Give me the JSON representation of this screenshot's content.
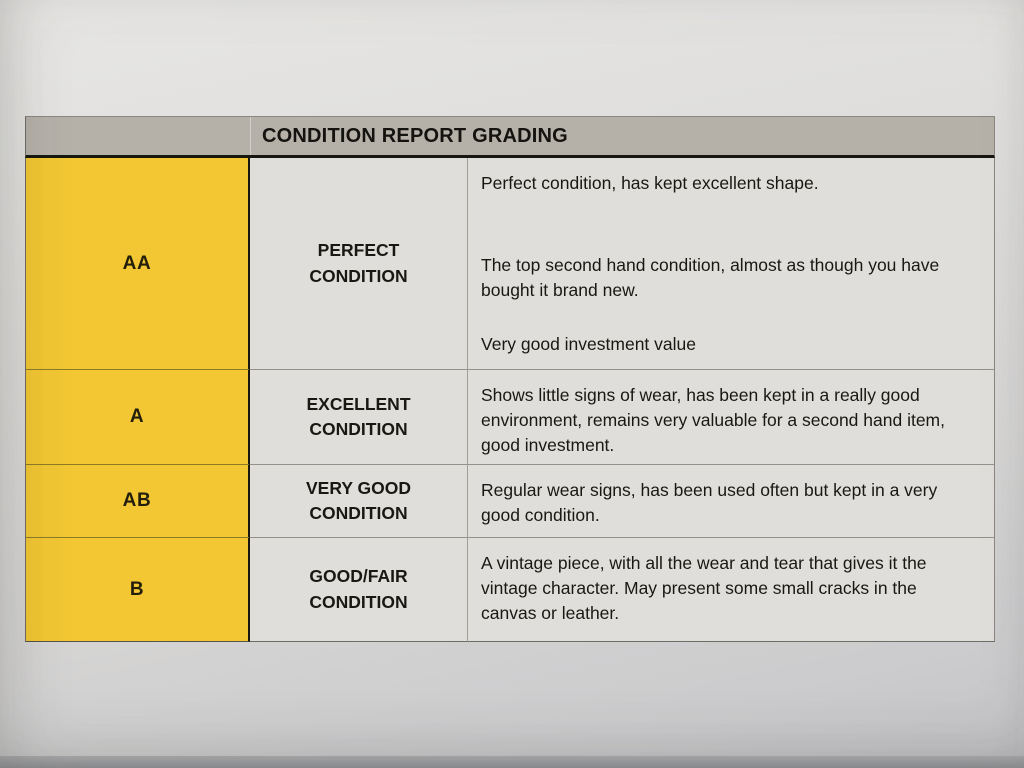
{
  "table": {
    "title": "CONDITION REPORT GRADING",
    "rows": [
      {
        "grade": "AA",
        "condition": "PERFECT CONDITION",
        "description_paragraphs": [
          "Perfect condition, has kept excellent shape.",
          "The top second hand condition, almost as though you have bought it brand new.",
          "Very good investment value"
        ]
      },
      {
        "grade": "A",
        "condition": "EXCELLENT CONDITION",
        "description_paragraphs": [
          "Shows little signs of wear, has been kept in a really good environment, remains very valuable for a second hand item, good investment."
        ]
      },
      {
        "grade": "AB",
        "condition": "VERY GOOD CONDITION",
        "description_paragraphs": [
          "Regular wear signs, has been used often but kept in a very good condition."
        ]
      },
      {
        "grade": "B",
        "condition": "GOOD/FAIR CONDITION",
        "description_paragraphs": [
          "A vintage piece, with all the wear and tear that gives it the vintage character. May present some small cracks in the canvas or leather."
        ]
      }
    ]
  },
  "colors": {
    "grade_cell_yellow": "#f2c733",
    "header_band_gray": "#b5b1a9",
    "cell_bg": "#dfdeda",
    "text": "#1c1a15"
  }
}
